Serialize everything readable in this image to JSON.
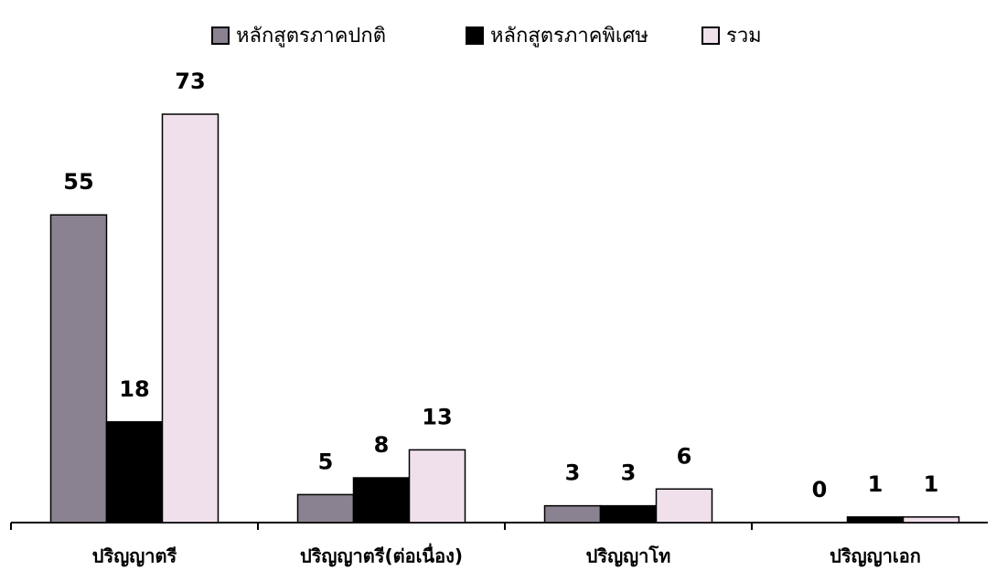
{
  "chart_data": {
    "type": "bar",
    "categories": [
      "ปริญญาตรี",
      "ปริญญาตรี(ต่อเนื่อง)",
      "ปริญญาโท",
      "ปริญญาเอก"
    ],
    "series": [
      {
        "name": "หลักสูตรภาคปกติ",
        "color": "#8a8290",
        "values": [
          55,
          5,
          3,
          0
        ]
      },
      {
        "name": "หลักสูตรภาคพิเศษ",
        "color": "#000000",
        "values": [
          18,
          8,
          3,
          1
        ]
      },
      {
        "name": "รวม",
        "color": "#efe0ec",
        "values": [
          73,
          13,
          6,
          1
        ]
      }
    ],
    "legend": "top"
  }
}
